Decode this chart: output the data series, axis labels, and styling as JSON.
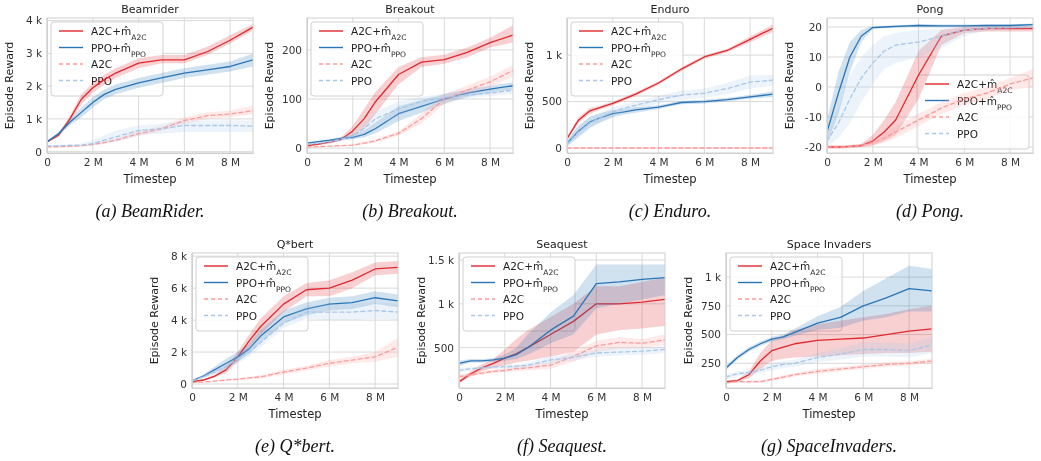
{
  "chart_data": [
    {
      "type": "line",
      "title": "Beamrider",
      "xlabel": "Timestep",
      "ylabel": "Episode Reward",
      "annotations": [
        "(a) BeamRider."
      ],
      "grid": true,
      "legend": "top left",
      "xlim": [
        0,
        9
      ],
      "xticks": [
        {
          "value": 0,
          "label": "0"
        },
        {
          "value": 2,
          "label": "2 M"
        },
        {
          "value": 4,
          "label": "4 M"
        },
        {
          "value": 6,
          "label": "6 M"
        },
        {
          "value": 8,
          "label": "8 M"
        }
      ],
      "ylim": [
        -40,
        4080
      ],
      "yticks": [
        {
          "value": 0,
          "label": "0"
        },
        {
          "value": 1000,
          "label": "1 k"
        },
        {
          "value": 2000,
          "label": "2 k"
        },
        {
          "value": 3000,
          "label": "3 k"
        },
        {
          "value": 4000,
          "label": "4 k"
        }
      ],
      "x": [
        0,
        0.5,
        1,
        1.5,
        2,
        2.5,
        3,
        4,
        5,
        6,
        7,
        8,
        9
      ],
      "series": [
        {
          "name": "A2C+m̂$_{A2C}$",
          "color": "#e0282e",
          "line_style": "solid",
          "values": [
            300,
            500,
            1000,
            1600,
            1950,
            2200,
            2400,
            2700,
            2800,
            2800,
            3050,
            3400,
            3800
          ],
          "lower": [
            270,
            450,
            900,
            1450,
            1800,
            2050,
            2250,
            2550,
            2700,
            2700,
            2950,
            3300,
            3700
          ],
          "upper": [
            330,
            550,
            1100,
            1750,
            2100,
            2350,
            2550,
            2850,
            2950,
            2950,
            3200,
            3550,
            3900
          ]
        },
        {
          "name": "PPO+m̂$_{PPO}$",
          "color": "#2a75b6",
          "line_style": "solid",
          "values": [
            300,
            550,
            900,
            1200,
            1500,
            1750,
            1900,
            2100,
            2250,
            2400,
            2500,
            2600,
            2800
          ],
          "lower": [
            270,
            500,
            800,
            1050,
            1350,
            1600,
            1750,
            1950,
            2100,
            2250,
            2350,
            2450,
            2600
          ],
          "upper": [
            330,
            600,
            1000,
            1350,
            1650,
            1900,
            2050,
            2250,
            2400,
            2550,
            2650,
            2750,
            3000
          ]
        },
        {
          "name": "A2C",
          "color": "#ff9a9a",
          "line_style": "dashed",
          "values": [
            150,
            150,
            160,
            180,
            220,
            280,
            350,
            550,
            700,
            950,
            1100,
            1150,
            1250
          ],
          "lower": [
            130,
            130,
            140,
            160,
            190,
            240,
            300,
            480,
            630,
            850,
            1000,
            1050,
            1150
          ],
          "upper": [
            170,
            170,
            180,
            200,
            250,
            320,
            400,
            620,
            770,
            1050,
            1200,
            1250,
            1400
          ]
        },
        {
          "name": "PPO",
          "color": "#a9c7ea",
          "line_style": "dashed",
          "values": [
            180,
            180,
            190,
            200,
            250,
            350,
            450,
            650,
            700,
            800,
            800,
            800,
            780
          ],
          "lower": [
            150,
            150,
            160,
            170,
            200,
            250,
            300,
            500,
            550,
            600,
            600,
            600,
            600
          ],
          "upper": [
            210,
            210,
            220,
            250,
            350,
            500,
            650,
            800,
            850,
            950,
            950,
            950,
            950
          ]
        }
      ]
    },
    {
      "type": "line",
      "title": "Breakout",
      "xlabel": "Timestep",
      "ylabel": "Episode Reward",
      "annotations": [
        "(b) Breakout."
      ],
      "grid": true,
      "legend": "top left",
      "xlim": [
        0,
        9
      ],
      "xticks": [
        {
          "value": 0,
          "label": "0"
        },
        {
          "value": 2,
          "label": "2 M"
        },
        {
          "value": 4,
          "label": "4 M"
        },
        {
          "value": 6,
          "label": "6 M"
        },
        {
          "value": 8,
          "label": "8 M"
        }
      ],
      "ylim": [
        -10,
        265
      ],
      "yticks": [
        0,
        100,
        200
      ],
      "x": [
        0,
        0.5,
        1,
        1.5,
        2,
        2.5,
        3,
        4,
        5,
        6,
        7,
        8,
        9
      ],
      "series": [
        {
          "name": "A2C+m̂$_{A2C}$",
          "color": "#e0282e",
          "line_style": "solid",
          "values": [
            5,
            8,
            12,
            18,
            35,
            60,
            95,
            150,
            175,
            180,
            195,
            215,
            230
          ],
          "lower": [
            3,
            6,
            10,
            15,
            25,
            40,
            70,
            130,
            165,
            172,
            185,
            205,
            215
          ],
          "upper": [
            7,
            10,
            14,
            22,
            45,
            80,
            115,
            165,
            185,
            190,
            205,
            225,
            250
          ]
        },
        {
          "name": "PPO+m̂$_{PPO}$",
          "color": "#2a75b6",
          "line_style": "solid",
          "values": [
            10,
            13,
            16,
            20,
            22,
            28,
            40,
            70,
            85,
            100,
            112,
            120,
            127
          ],
          "lower": [
            8,
            11,
            14,
            17,
            18,
            22,
            30,
            55,
            72,
            90,
            104,
            113,
            120
          ],
          "upper": [
            12,
            15,
            18,
            23,
            27,
            36,
            52,
            85,
            98,
            110,
            120,
            127,
            134
          ]
        },
        {
          "name": "A2C",
          "color": "#ff9a9a",
          "line_style": "dashed",
          "values": [
            2,
            3,
            4,
            5,
            6,
            10,
            15,
            30,
            60,
            100,
            118,
            135,
            158
          ],
          "lower": [
            1,
            2,
            3,
            4,
            5,
            8,
            12,
            25,
            50,
            90,
            110,
            125,
            145
          ],
          "upper": [
            3,
            4,
            5,
            6,
            8,
            13,
            18,
            35,
            70,
            110,
            128,
            145,
            170
          ]
        },
        {
          "name": "PPO",
          "color": "#a9c7ea",
          "line_style": "dashed",
          "values": [
            8,
            10,
            13,
            18,
            25,
            40,
            60,
            80,
            95,
            103,
            108,
            112,
            118
          ],
          "lower": [
            6,
            8,
            10,
            14,
            18,
            28,
            45,
            65,
            85,
            96,
            102,
            106,
            110
          ],
          "upper": [
            10,
            12,
            16,
            22,
            32,
            52,
            75,
            95,
            105,
            110,
            114,
            118,
            126
          ]
        }
      ]
    },
    {
      "type": "line",
      "title": "Enduro",
      "xlabel": "Timestep",
      "ylabel": "Episode Reward",
      "annotations": [
        "(c) Enduro."
      ],
      "grid": true,
      "legend": "top left",
      "xlim": [
        0,
        9
      ],
      "xticks": [
        {
          "value": 0,
          "label": "0"
        },
        {
          "value": 2,
          "label": "2 M"
        },
        {
          "value": 4,
          "label": "4 M"
        },
        {
          "value": 6,
          "label": "6 M"
        },
        {
          "value": 8,
          "label": "8 M"
        }
      ],
      "ylim": [
        -54,
        1400
      ],
      "yticks": [
        0,
        500,
        {
          "value": 1000,
          "label": "1 k"
        }
      ],
      "x": [
        0,
        0.5,
        1,
        1.5,
        2,
        2.5,
        3,
        4,
        5,
        6,
        7,
        8,
        9
      ],
      "series": [
        {
          "name": "A2C+m̂$_{A2C}$",
          "color": "#e0282e",
          "line_style": "solid",
          "values": [
            100,
            300,
            400,
            440,
            480,
            530,
            580,
            700,
            850,
            980,
            1050,
            1170,
            1290
          ],
          "lower": [
            80,
            270,
            370,
            420,
            460,
            510,
            560,
            680,
            830,
            960,
            1030,
            1140,
            1250
          ],
          "upper": [
            120,
            330,
            430,
            460,
            500,
            550,
            600,
            720,
            870,
            1000,
            1070,
            1200,
            1330
          ]
        },
        {
          "name": "PPO+m̂$_{PPO}$",
          "color": "#2a75b6",
          "line_style": "solid",
          "values": [
            50,
            180,
            280,
            330,
            370,
            390,
            410,
            440,
            490,
            500,
            520,
            550,
            580
          ],
          "lower": [
            20,
            120,
            220,
            280,
            330,
            360,
            380,
            420,
            470,
            480,
            500,
            530,
            550
          ],
          "upper": [
            80,
            240,
            340,
            380,
            410,
            420,
            440,
            460,
            510,
            520,
            540,
            570,
            610
          ]
        },
        {
          "name": "A2C",
          "color": "#ff9a9a",
          "line_style": "dashed",
          "values": [
            0,
            0,
            0,
            0,
            0,
            0,
            0,
            0,
            0,
            0,
            0,
            0,
            0
          ],
          "lower": [
            -5,
            -5,
            -5,
            -5,
            -5,
            -5,
            -5,
            -5,
            -5,
            -5,
            -5,
            -5,
            -5
          ],
          "upper": [
            5,
            5,
            5,
            5,
            5,
            5,
            5,
            5,
            5,
            5,
            5,
            5,
            5
          ]
        },
        {
          "name": "PPO",
          "color": "#a9c7ea",
          "line_style": "dashed",
          "values": [
            40,
            170,
            270,
            330,
            390,
            430,
            460,
            520,
            570,
            590,
            640,
            710,
            730
          ],
          "lower": [
            10,
            110,
            210,
            280,
            340,
            390,
            420,
            480,
            520,
            540,
            580,
            640,
            670
          ],
          "upper": [
            70,
            230,
            330,
            380,
            440,
            470,
            500,
            560,
            620,
            640,
            700,
            780,
            790
          ]
        }
      ]
    },
    {
      "type": "line",
      "title": "Pong",
      "xlabel": "Timestep",
      "ylabel": "Episode Reward",
      "annotations": [
        "(d) Pong."
      ],
      "grid": true,
      "legend": "bottom right",
      "xlim": [
        0,
        9
      ],
      "xticks": [
        {
          "value": 0,
          "label": "0"
        },
        {
          "value": 2,
          "label": "2 M"
        },
        {
          "value": 4,
          "label": "4 M"
        },
        {
          "value": 6,
          "label": "6 M"
        },
        {
          "value": 8,
          "label": "8 M"
        }
      ],
      "ylim": [
        -22,
        23
      ],
      "yticks": [
        -20,
        -10,
        0,
        10,
        20
      ],
      "x": [
        0,
        0.5,
        1,
        1.5,
        2,
        2.5,
        3,
        4,
        5,
        6,
        7,
        8,
        9
      ],
      "series": [
        {
          "name": "A2C+m̂$_{A2C}$",
          "color": "#e0282e",
          "line_style": "solid",
          "values": [
            -20,
            -20,
            -19.8,
            -19.5,
            -18,
            -15,
            -11,
            4,
            17,
            19,
            19.5,
            19.5,
            19.5
          ],
          "lower": [
            -20.5,
            -20.5,
            -20.3,
            -20,
            -19.5,
            -18,
            -16,
            -4,
            14,
            18,
            18.5,
            18.5,
            18.5
          ],
          "upper": [
            -19.5,
            -19.5,
            -19.3,
            -19,
            -16,
            -11,
            -5,
            12,
            19,
            20,
            20.3,
            20.3,
            20.3
          ]
        },
        {
          "name": "PPO+m̂$_{PPO}$",
          "color": "#2a75b6",
          "line_style": "solid",
          "values": [
            -15,
            -2,
            10,
            17,
            19.8,
            20,
            20.2,
            20.5,
            20.4,
            20.4,
            20.5,
            20.5,
            20.8
          ],
          "lower": [
            -19,
            -9,
            5,
            15,
            19.3,
            19.6,
            19.8,
            20.1,
            20,
            20,
            20.1,
            20.1,
            20.4
          ],
          "upper": [
            -11,
            5,
            15,
            19,
            20.3,
            20.4,
            20.6,
            20.9,
            20.8,
            20.8,
            20.9,
            20.9,
            21.2
          ]
        },
        {
          "name": "A2C",
          "color": "#ff9a9a",
          "line_style": "dashed",
          "values": [
            -20,
            -20,
            -19.8,
            -19.5,
            -18.5,
            -17,
            -15,
            -11,
            -7,
            -4,
            -2,
            1,
            3
          ],
          "lower": [
            -20.5,
            -20.5,
            -20.3,
            -20,
            -19.5,
            -18.5,
            -17,
            -13,
            -9,
            -6,
            -4,
            -1,
            0
          ],
          "upper": [
            -19.5,
            -19.5,
            -19.3,
            -19,
            -17.5,
            -15.5,
            -13,
            -9,
            -5,
            -2,
            0,
            3,
            6
          ]
        },
        {
          "name": "PPO",
          "color": "#a9c7ea",
          "line_style": "dashed",
          "values": [
            -18,
            -12,
            -4,
            3,
            8,
            12,
            14,
            15,
            17,
            19,
            19.6,
            19.8,
            20
          ],
          "lower": [
            -20,
            -17,
            -12,
            -5,
            1,
            6,
            8,
            10,
            13,
            17,
            18.8,
            19.2,
            19.5
          ],
          "upper": [
            -16,
            -7,
            4,
            10,
            14,
            17,
            18,
            19,
            19.5,
            20,
            20.2,
            20.3,
            20.4
          ]
        }
      ]
    },
    {
      "type": "line",
      "title": "Q*bert",
      "xlabel": "Timestep",
      "ylabel": "Episode Reward",
      "annotations": [
        "(e) Q*bert."
      ],
      "grid": true,
      "legend": "top left",
      "xlim": [
        0,
        9
      ],
      "xticks": [
        {
          "value": 0,
          "label": "0"
        },
        {
          "value": 2,
          "label": "2 M"
        },
        {
          "value": 4,
          "label": "4 M"
        },
        {
          "value": 6,
          "label": "6 M"
        },
        {
          "value": 8,
          "label": "8 M"
        }
      ],
      "ylim": [
        -250,
        8200
      ],
      "yticks": [
        {
          "value": 0,
          "label": "0"
        },
        {
          "value": 2000,
          "label": "2 k"
        },
        {
          "value": 4000,
          "label": "4 k"
        },
        {
          "value": 6000,
          "label": "6 k"
        },
        {
          "value": 8000,
          "label": "8 k"
        }
      ],
      "x": [
        0,
        0.5,
        1,
        1.5,
        2,
        2.5,
        3,
        4,
        5,
        6,
        7,
        8,
        9
      ],
      "series": [
        {
          "name": "A2C+m̂$_{A2C}$",
          "color": "#e0282e",
          "line_style": "solid",
          "values": [
            150,
            250,
            500,
            900,
            1700,
            2700,
            3600,
            5000,
            5900,
            6000,
            6500,
            7200,
            7300
          ],
          "lower": [
            120,
            200,
            400,
            700,
            1400,
            2300,
            3100,
            4500,
            5500,
            5500,
            6000,
            6800,
            6900
          ],
          "upper": [
            180,
            300,
            600,
            1100,
            2000,
            3100,
            4100,
            5500,
            6300,
            6500,
            7000,
            7600,
            7700
          ]
        },
        {
          "name": "PPO+m̂$_{PPO}$",
          "color": "#2a75b6",
          "line_style": "solid",
          "values": [
            200,
            500,
            900,
            1300,
            1700,
            2200,
            3000,
            4200,
            4700,
            5000,
            5100,
            5400,
            5200
          ],
          "lower": [
            150,
            400,
            700,
            1000,
            1400,
            1900,
            2600,
            3800,
            4300,
            4600,
            4700,
            5000,
            4800
          ],
          "upper": [
            250,
            600,
            1100,
            1600,
            2000,
            2500,
            3400,
            4600,
            5100,
            5400,
            5500,
            5800,
            5600
          ]
        },
        {
          "name": "A2C",
          "color": "#ff9a9a",
          "line_style": "dashed",
          "values": [
            100,
            120,
            180,
            250,
            300,
            380,
            450,
            750,
            1000,
            1300,
            1500,
            1700,
            2300
          ],
          "lower": [
            80,
            100,
            150,
            200,
            250,
            300,
            350,
            600,
            850,
            1100,
            1300,
            1400,
            1700
          ],
          "upper": [
            120,
            140,
            210,
            300,
            350,
            460,
            550,
            900,
            1150,
            1500,
            1700,
            2000,
            2900
          ]
        },
        {
          "name": "PPO",
          "color": "#a9c7ea",
          "line_style": "dashed",
          "values": [
            200,
            450,
            750,
            1100,
            1600,
            2000,
            2600,
            3800,
            4500,
            4500,
            4500,
            4600,
            4500
          ],
          "lower": [
            150,
            350,
            600,
            900,
            1300,
            1700,
            2300,
            3500,
            4100,
            4000,
            4000,
            4100,
            4000
          ],
          "upper": [
            250,
            550,
            900,
            1300,
            1900,
            2300,
            2900,
            4100,
            4900,
            5000,
            5000,
            5100,
            5000
          ]
        }
      ]
    },
    {
      "type": "line",
      "title": "Seaquest",
      "xlabel": "Timestep",
      "ylabel": "Episode Reward",
      "annotations": [
        "(f) Seaquest."
      ],
      "grid": true,
      "legend": "top left",
      "xlim": [
        0,
        9
      ],
      "xticks": [
        {
          "value": 0,
          "label": "0"
        },
        {
          "value": 2,
          "label": "2 M"
        },
        {
          "value": 4,
          "label": "4 M"
        },
        {
          "value": 6,
          "label": "6 M"
        },
        {
          "value": 8,
          "label": "8 M"
        }
      ],
      "ylim": [
        40,
        1580
      ],
      "yticks": [
        500,
        {
          "value": 1000,
          "label": "1 k"
        },
        {
          "value": 1500,
          "label": "1.5 k"
        }
      ],
      "x": [
        0,
        0.5,
        1,
        1.5,
        2,
        2.5,
        3,
        4,
        5,
        6,
        7,
        8,
        9
      ],
      "series": [
        {
          "name": "A2C+m̂$_{A2C}$",
          "color": "#e0282e",
          "line_style": "solid",
          "values": [
            110,
            200,
            270,
            320,
            380,
            430,
            500,
            650,
            800,
            1000,
            1000,
            1020,
            1050
          ],
          "lower": [
            90,
            170,
            230,
            270,
            300,
            330,
            350,
            400,
            450,
            650,
            700,
            720,
            750
          ],
          "upper": [
            130,
            230,
            310,
            370,
            480,
            600,
            700,
            850,
            1000,
            1200,
            1200,
            1250,
            1300
          ]
        },
        {
          "name": "PPO+m̂$_{PPO}$",
          "color": "#2a75b6",
          "line_style": "solid",
          "values": [
            320,
            350,
            350,
            360,
            380,
            420,
            500,
            700,
            860,
            1230,
            1250,
            1280,
            1300
          ],
          "lower": [
            290,
            330,
            330,
            340,
            350,
            370,
            420,
            550,
            650,
            950,
            1000,
            1050,
            1100
          ],
          "upper": [
            350,
            370,
            370,
            380,
            420,
            500,
            650,
            900,
            1100,
            1450,
            1450,
            1450,
            1450
          ]
        },
        {
          "name": "A2C",
          "color": "#ff9a9a",
          "line_style": "dashed",
          "values": [
            170,
            190,
            210,
            230,
            240,
            260,
            270,
            300,
            400,
            520,
            560,
            550,
            590
          ],
          "lower": [
            150,
            170,
            190,
            210,
            220,
            230,
            240,
            260,
            340,
            450,
            490,
            500,
            530
          ],
          "upper": [
            190,
            210,
            230,
            250,
            260,
            290,
            300,
            340,
            460,
            580,
            620,
            600,
            650
          ]
        },
        {
          "name": "PPO",
          "color": "#a9c7ea",
          "line_style": "dashed",
          "values": [
            240,
            260,
            270,
            280,
            280,
            290,
            300,
            360,
            390,
            440,
            450,
            460,
            480
          ],
          "lower": [
            220,
            240,
            250,
            260,
            260,
            265,
            270,
            320,
            350,
            400,
            410,
            420,
            440
          ],
          "upper": [
            260,
            280,
            290,
            300,
            300,
            305,
            330,
            400,
            430,
            480,
            490,
            500,
            520
          ]
        }
      ]
    },
    {
      "type": "line",
      "title": "Space Invaders",
      "xlabel": "Timestep",
      "ylabel": "Episode Reward",
      "annotations": [
        "(g) SpaceInvaders."
      ],
      "grid": true,
      "legend": "top left",
      "xlim": [
        0,
        9
      ],
      "xticks": [
        {
          "value": 0,
          "label": "0"
        },
        {
          "value": 2,
          "label": "2 M"
        },
        {
          "value": 4,
          "label": "4 M"
        },
        {
          "value": 6,
          "label": "6 M"
        },
        {
          "value": 8,
          "label": "8 M"
        }
      ],
      "ylim": [
        35,
        1210
      ],
      "yticks": [
        250,
        500,
        750,
        {
          "value": 1000,
          "label": "1 k"
        }
      ],
      "x": [
        0,
        0.5,
        1,
        1.5,
        2,
        2.5,
        3,
        4,
        5,
        6,
        7,
        8,
        9
      ],
      "series": [
        {
          "name": "A2C+m̂$_{A2C}$",
          "color": "#e0282e",
          "line_style": "solid",
          "values": [
            90,
            100,
            150,
            270,
            360,
            390,
            420,
            450,
            460,
            470,
            500,
            530,
            550
          ],
          "lower": [
            80,
            90,
            120,
            200,
            270,
            290,
            300,
            310,
            320,
            330,
            340,
            340,
            350
          ],
          "upper": [
            100,
            110,
            180,
            340,
            450,
            490,
            540,
            590,
            620,
            650,
            680,
            720,
            750
          ]
        },
        {
          "name": "PPO+m̂$_{PPO}$",
          "color": "#2a75b6",
          "line_style": "solid",
          "values": [
            210,
            300,
            370,
            420,
            460,
            480,
            520,
            600,
            650,
            750,
            820,
            900,
            880
          ],
          "lower": [
            190,
            280,
            350,
            400,
            440,
            460,
            490,
            540,
            560,
            620,
            650,
            700,
            700
          ],
          "upper": [
            230,
            320,
            390,
            440,
            480,
            500,
            550,
            660,
            740,
            880,
            990,
            1100,
            1070
          ]
        },
        {
          "name": "A2C",
          "color": "#ff9a9a",
          "line_style": "dashed",
          "values": [
            80,
            90,
            90,
            90,
            110,
            130,
            150,
            180,
            200,
            220,
            240,
            250,
            270
          ],
          "lower": [
            70,
            80,
            80,
            80,
            95,
            115,
            135,
            160,
            180,
            200,
            220,
            230,
            250
          ],
          "upper": [
            90,
            100,
            100,
            100,
            125,
            145,
            165,
            200,
            220,
            240,
            260,
            270,
            290
          ]
        },
        {
          "name": "PPO",
          "color": "#a9c7ea",
          "line_style": "dashed",
          "values": [
            130,
            160,
            170,
            190,
            220,
            240,
            250,
            300,
            330,
            370,
            370,
            360,
            410
          ],
          "lower": [
            110,
            140,
            150,
            165,
            190,
            210,
            220,
            260,
            280,
            310,
            310,
            300,
            340
          ],
          "upper": [
            150,
            180,
            190,
            215,
            250,
            270,
            280,
            340,
            380,
            430,
            430,
            420,
            480
          ]
        }
      ]
    }
  ]
}
